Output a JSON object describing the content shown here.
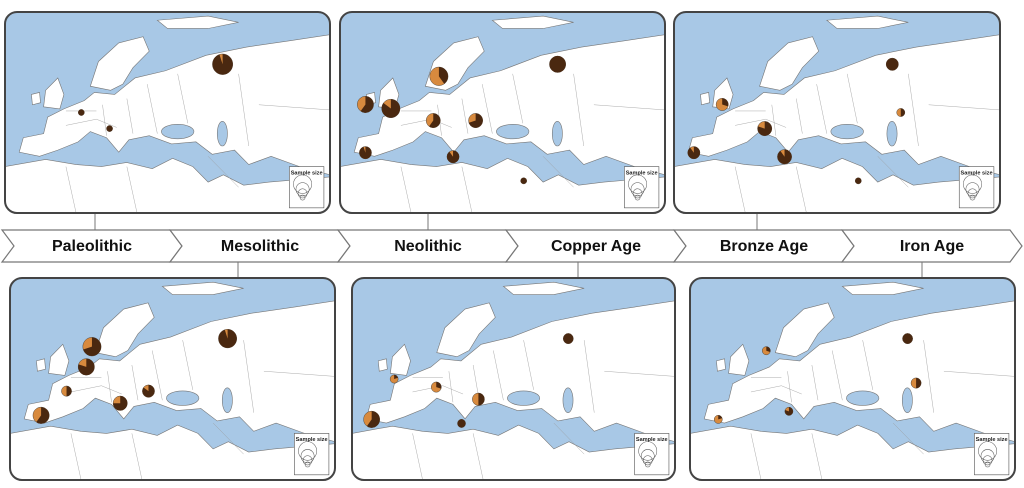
{
  "timeline": [
    "Paleolithic",
    "Mesolithic",
    "Neolithic",
    "Copper Age",
    "Bronze Age",
    "Iron Age"
  ],
  "legend_title": "Sample size",
  "panels": [
    {
      "pies": [
        {
          "lon": 62,
          "lat": 62,
          "dark_share": 0.95,
          "size": 10
        },
        {
          "lon": 12,
          "lat": 50,
          "dark_share": 1,
          "size": 3
        },
        {
          "lon": 22,
          "lat": 46,
          "dark_share": 1,
          "size": 3
        }
      ]
    },
    {
      "pies": [
        {
          "lon": 62,
          "lat": 60,
          "dark_share": 0.95,
          "size": 9
        },
        {
          "lon": 14,
          "lat": 58,
          "dark_share": 0.7,
          "size": 9
        },
        {
          "lon": 12,
          "lat": 53,
          "dark_share": 0.8,
          "size": 8
        },
        {
          "lon": -4,
          "lat": 41,
          "dark_share": 0.6,
          "size": 8
        },
        {
          "lon": 24,
          "lat": 44,
          "dark_share": 0.75,
          "size": 7
        },
        {
          "lon": 34,
          "lat": 47,
          "dark_share": 0.85,
          "size": 6
        },
        {
          "lon": 5,
          "lat": 47,
          "dark_share": 0.5,
          "size": 5
        }
      ]
    },
    {
      "pies": [
        {
          "lon": 62,
          "lat": 62,
          "dark_share": 1,
          "size": 8
        },
        {
          "lon": 20,
          "lat": 59,
          "dark_share": 0.4,
          "size": 9
        },
        {
          "lon": -6,
          "lat": 52,
          "dark_share": 0.6,
          "size": 8
        },
        {
          "lon": 3,
          "lat": 51,
          "dark_share": 0.85,
          "size": 9
        },
        {
          "lon": 18,
          "lat": 48,
          "dark_share": 0.6,
          "size": 7
        },
        {
          "lon": 33,
          "lat": 48,
          "dark_share": 0.7,
          "size": 7
        },
        {
          "lon": -6,
          "lat": 40,
          "dark_share": 0.95,
          "size": 6
        },
        {
          "lon": 25,
          "lat": 39,
          "dark_share": 0.9,
          "size": 6
        },
        {
          "lon": 50,
          "lat": 33,
          "dark_share": 1,
          "size": 3
        }
      ]
    },
    {
      "pies": [
        {
          "lon": 62,
          "lat": 60,
          "dark_share": 1,
          "size": 5
        },
        {
          "lon": -8,
          "lat": 40,
          "dark_share": 0.6,
          "size": 8
        },
        {
          "lon": 15,
          "lat": 48,
          "dark_share": 0.3,
          "size": 5
        },
        {
          "lon": 30,
          "lat": 45,
          "dark_share": 0.5,
          "size": 6
        },
        {
          "lon": 24,
          "lat": 39,
          "dark_share": 1,
          "size": 4
        },
        {
          "lon": 0,
          "lat": 50,
          "dark_share": 0.2,
          "size": 4
        }
      ]
    },
    {
      "pies": [
        {
          "lon": 62,
          "lat": 62,
          "dark_share": 1,
          "size": 6
        },
        {
          "lon": 65,
          "lat": 50,
          "dark_share": 0.5,
          "size": 4
        },
        {
          "lon": -8,
          "lat": 40,
          "dark_share": 0.9,
          "size": 6
        },
        {
          "lon": 2,
          "lat": 52,
          "dark_share": 0.3,
          "size": 6
        },
        {
          "lon": 17,
          "lat": 46,
          "dark_share": 0.8,
          "size": 7
        },
        {
          "lon": 24,
          "lat": 39,
          "dark_share": 0.9,
          "size": 7
        },
        {
          "lon": 50,
          "lat": 33,
          "dark_share": 1,
          "size": 3
        }
      ]
    },
    {
      "pies": [
        {
          "lon": 62,
          "lat": 60,
          "dark_share": 1,
          "size": 5
        },
        {
          "lon": 65,
          "lat": 49,
          "dark_share": 0.5,
          "size": 5
        },
        {
          "lon": -5,
          "lat": 40,
          "dark_share": 0.2,
          "size": 4
        },
        {
          "lon": 12,
          "lat": 57,
          "dark_share": 0.3,
          "size": 4
        },
        {
          "lon": 20,
          "lat": 42,
          "dark_share": 0.8,
          "size": 4
        }
      ]
    }
  ]
}
